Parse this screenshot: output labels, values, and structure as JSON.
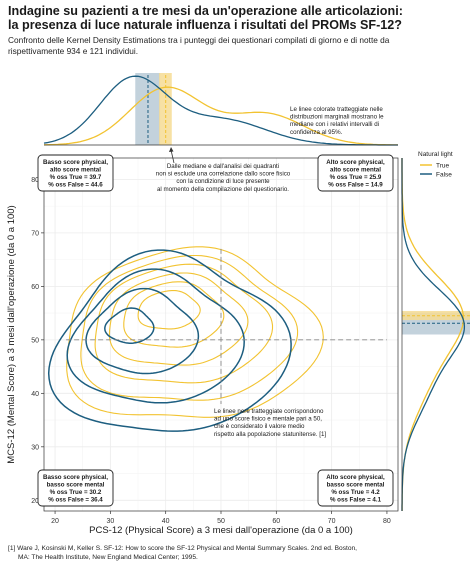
{
  "title_line1": "Indagine su pazienti a tre mesi da un'operazione alle articolazioni:",
  "title_line2": "la presenza di luce naturale influenza i risultati del PROMs SF-12?",
  "subtitle_line1": "Confronto delle Kernel Density Estimations tra i punteggi dei questionari compilati di giorno e di notte da",
  "subtitle_line2": "rispettivamente 934 e 121 individui.",
  "footnote_line1": "[1] Ware J, Kosinski M, Keller S. SF-12: How to score the SF-12 Physical and Mental Summary Scales. 2nd ed. Boston,",
  "footnote_line2": "MA: The Health Institute, New England Medical Center; 1995.",
  "colors": {
    "true": "#f2c331",
    "false": "#1d5e80",
    "ci_true": "#f6dc94",
    "ci_false": "#b9cad6",
    "grid": "#ececec"
  },
  "chart_data": {
    "type": "density-contour",
    "xlabel": "PCS-12 (Physical Score) a 3 mesi dall'operazione (da 0 a 100)",
    "ylabel": "MCS-12 (Mental Score) a 3 mesi dall'operazione (da 0 a 100)",
    "xlim": [
      18,
      82
    ],
    "ylim": [
      18,
      84
    ],
    "xticks": [
      20,
      30,
      40,
      50,
      60,
      70,
      80
    ],
    "yticks": [
      20,
      30,
      40,
      50,
      60,
      70,
      80
    ],
    "thresholds": {
      "x": 50,
      "y": 50
    },
    "legend": {
      "title": "Natural light",
      "position": "right",
      "entries": [
        "True",
        "False"
      ]
    },
    "series": [
      {
        "name": "True",
        "pcs_median": 40.0,
        "pcs_ci": [
          38.8,
          41.1
        ],
        "mcs_median": 54.5,
        "mcs_ci": [
          53.7,
          55.4
        ],
        "pcs_mode": 40,
        "mcs_mode": 56,
        "contour_levels": 6
      },
      {
        "name": "False",
        "pcs_median": 36.8,
        "pcs_ci": [
          34.5,
          39.0
        ],
        "mcs_median": 53.1,
        "mcs_ci": [
          51.0,
          55.1
        ],
        "pcs_mode": 34,
        "mcs_mode": 52,
        "contour_levels": 4
      }
    ],
    "quadrants": [
      {
        "id": "tl",
        "line1": "Basso score physical,",
        "line2": "alto score mental",
        "line3": "% oss True = 39.7",
        "line4": "% oss False = 44.6"
      },
      {
        "id": "tr",
        "line1": "Alto score physical,",
        "line2": "alto score mental",
        "line3": "% oss True = 25.9",
        "line4": "% oss False = 14.9"
      },
      {
        "id": "bl",
        "line1": "Basso score physical,",
        "line2": "basso score mental",
        "line3": "% oss True = 30.2",
        "line4": "% oss False = 36.4"
      },
      {
        "id": "br",
        "line1": "Alto score physical,",
        "line2": "basso score mental",
        "line3": "% oss True = 4.2",
        "line4": "% oss False = 4.1"
      }
    ],
    "annotations": {
      "ci_note": [
        "Le linee colorate tratteggiate nelle",
        "distribuzioni marginali mostrano le",
        "mediane con i relativi intervalli di",
        "confidenza al 95%."
      ],
      "quadrant_note": [
        "Dalle mediane e dall'analisi dei quadranti",
        "non si esclude una correlazione dallo score fisico",
        "con la condizione di luce presente",
        "al momento della compilazione del questionario."
      ],
      "threshold_note": [
        "Le linee nere tratteggiate corrispondono",
        "ad uno score fisico e mentale pari a 50,",
        "che è considerato il valore medio",
        "rispetto alla popolazione statunitense. [1]"
      ]
    }
  }
}
